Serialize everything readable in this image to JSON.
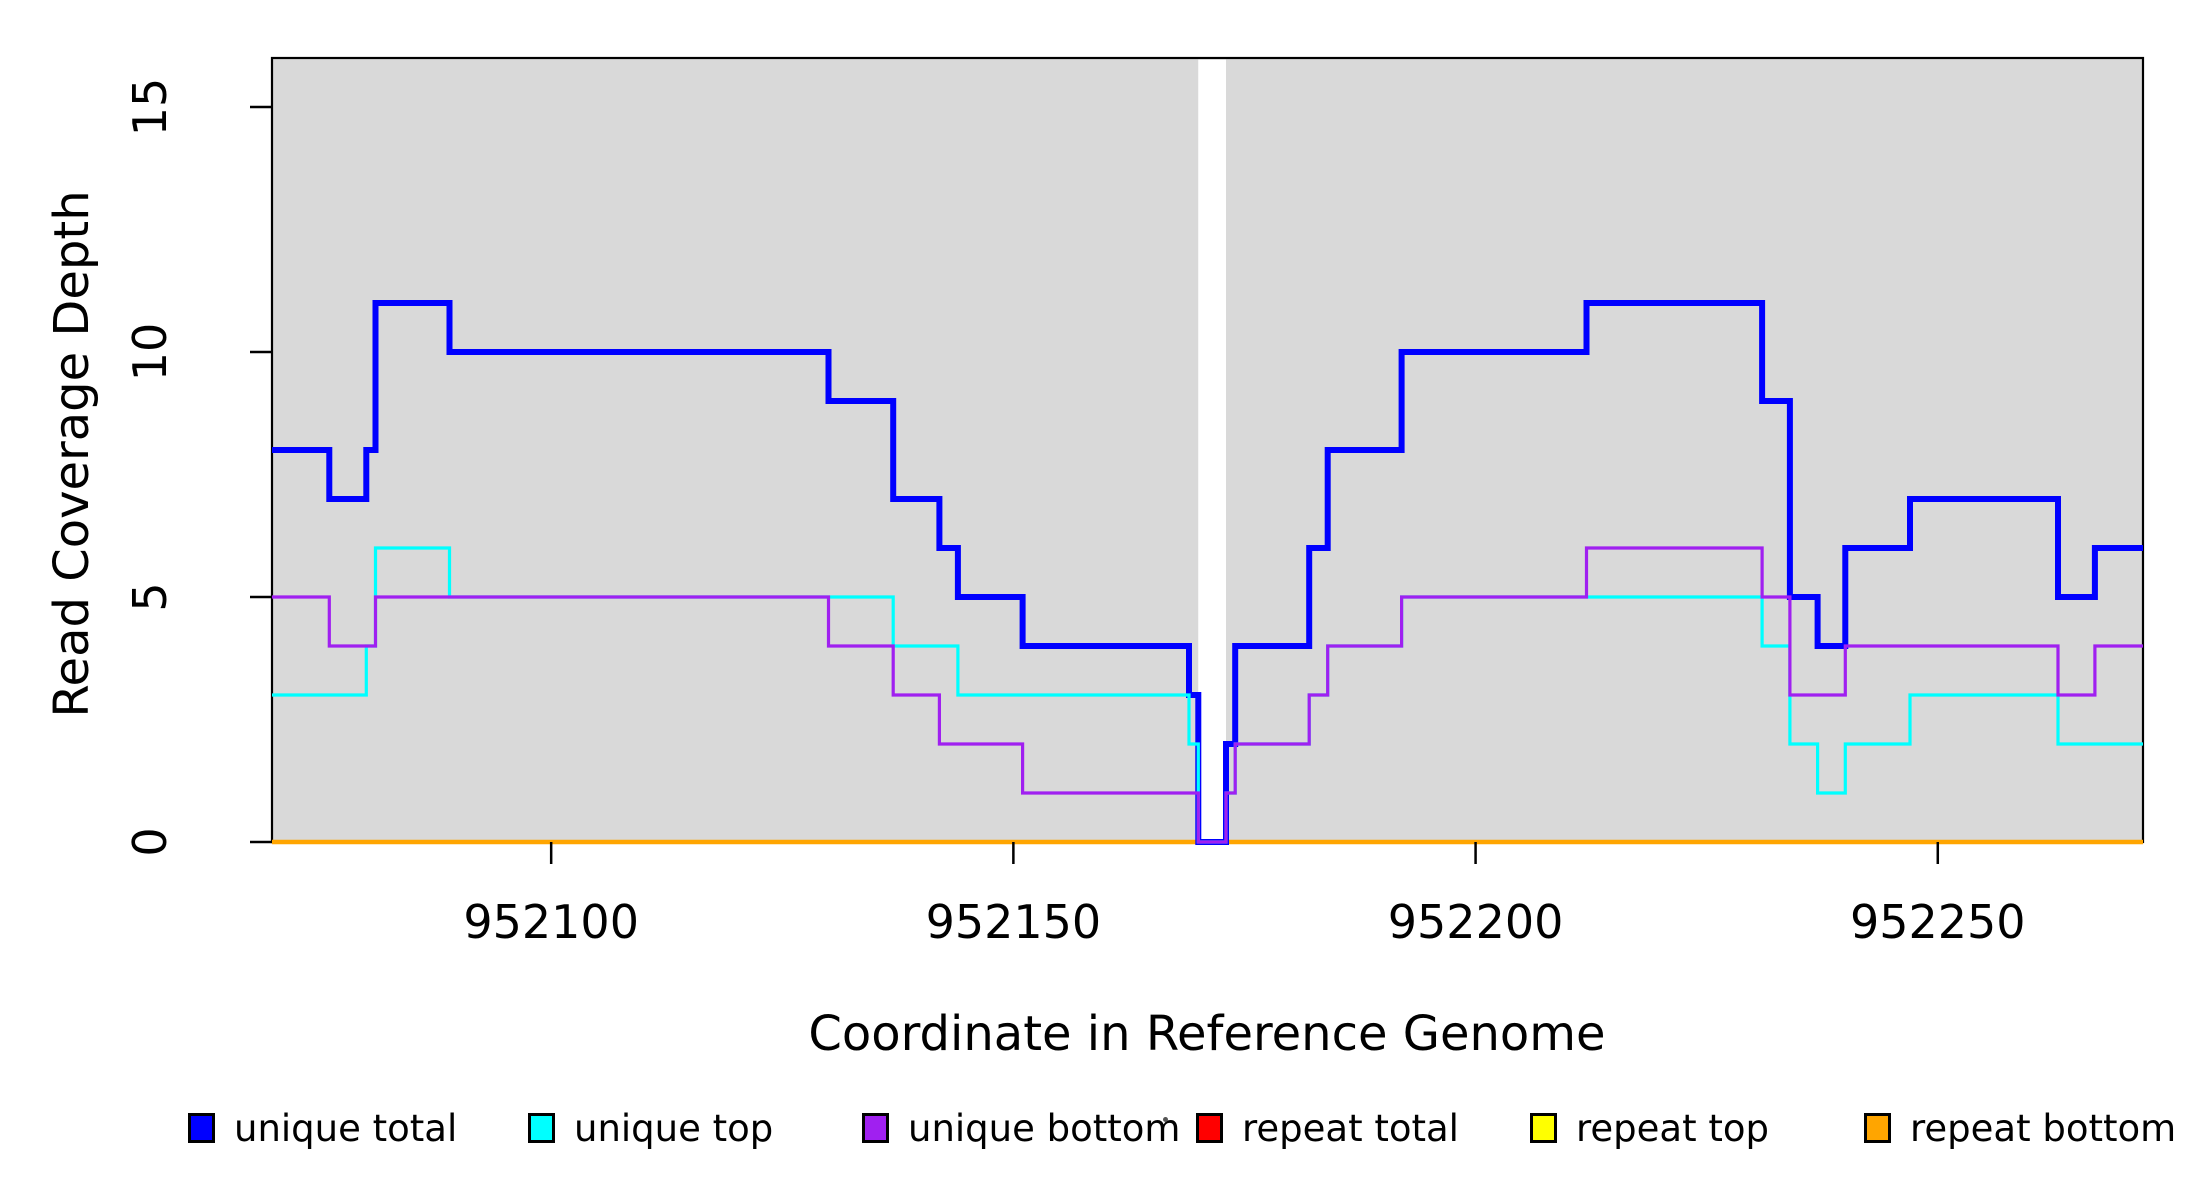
{
  "chart_data": {
    "type": "line",
    "subtype": "step",
    "title": "",
    "xlabel": "Coordinate in Reference Genome",
    "ylabel": "Read Coverage Depth",
    "xlim": [
      952069.8,
      952272.2
    ],
    "ylim": [
      0,
      16
    ],
    "x_ticks": [
      952100,
      952150,
      952200,
      952250
    ],
    "y_ticks": [
      0,
      5,
      10,
      15
    ],
    "grid": false,
    "legend_position": "bottom",
    "plot_background": "#D9D9D9",
    "no_data_region": {
      "x_start": 952170,
      "x_end": 952173
    },
    "series": [
      {
        "name": "unique total",
        "color": "#0000FF",
        "line_width": 6,
        "steps": [
          [
            952069.8,
            8
          ],
          [
            952076,
            7
          ],
          [
            952080,
            8
          ],
          [
            952081,
            11
          ],
          [
            952089,
            10
          ],
          [
            952130,
            9
          ],
          [
            952137,
            7
          ],
          [
            952142,
            6
          ],
          [
            952144,
            5
          ],
          [
            952151,
            4
          ],
          [
            952169,
            3
          ],
          [
            952170,
            0
          ],
          [
            952173,
            2
          ],
          [
            952174,
            4
          ],
          [
            952182,
            6
          ],
          [
            952184,
            8
          ],
          [
            952192,
            10
          ],
          [
            952212,
            11
          ],
          [
            952231,
            9
          ],
          [
            952234,
            5
          ],
          [
            952237,
            4
          ],
          [
            952240,
            6
          ],
          [
            952247,
            7
          ],
          [
            952263,
            5
          ],
          [
            952267,
            6
          ]
        ]
      },
      {
        "name": "unique top",
        "color": "#00FFFF",
        "line_width": 3.2,
        "steps": [
          [
            952069.8,
            3
          ],
          [
            952080,
            4
          ],
          [
            952081,
            6
          ],
          [
            952089,
            5
          ],
          [
            952137,
            4
          ],
          [
            952144,
            3
          ],
          [
            952169,
            2
          ],
          [
            952170,
            0
          ],
          [
            952173,
            1
          ],
          [
            952174,
            2
          ],
          [
            952182,
            3
          ],
          [
            952184,
            4
          ],
          [
            952192,
            5
          ],
          [
            952231,
            4
          ],
          [
            952234,
            2
          ],
          [
            952237,
            1
          ],
          [
            952240,
            2
          ],
          [
            952247,
            3
          ],
          [
            952263,
            2
          ]
        ]
      },
      {
        "name": "unique bottom",
        "color": "#A020F0",
        "line_width": 3.2,
        "steps": [
          [
            952069.8,
            5
          ],
          [
            952076,
            4
          ],
          [
            952081,
            5
          ],
          [
            952130,
            4
          ],
          [
            952137,
            3
          ],
          [
            952142,
            2
          ],
          [
            952151,
            1
          ],
          [
            952170,
            0
          ],
          [
            952173,
            1
          ],
          [
            952174,
            2
          ],
          [
            952182,
            3
          ],
          [
            952184,
            4
          ],
          [
            952192,
            5
          ],
          [
            952212,
            6
          ],
          [
            952231,
            5
          ],
          [
            952234,
            3
          ],
          [
            952240,
            4
          ],
          [
            952263,
            3
          ],
          [
            952267,
            4
          ]
        ]
      },
      {
        "name": "repeat total",
        "color": "#FF0000",
        "line_width": 4,
        "steps": [
          [
            952069.8,
            0
          ]
        ]
      },
      {
        "name": "repeat top",
        "color": "#FFFF00",
        "line_width": 4,
        "steps": [
          [
            952069.8,
            0
          ]
        ]
      },
      {
        "name": "repeat bottom",
        "color": "#FFA500",
        "line_width": 4.5,
        "steps": [
          [
            952069.8,
            0
          ]
        ]
      }
    ],
    "legend": {
      "items": [
        {
          "label": "unique total",
          "color": "#0000FF"
        },
        {
          "label": "unique top",
          "color": "#00FFFF"
        },
        {
          "label": "unique bottom",
          "color": "#A020F0"
        },
        {
          "label": "repeat total",
          "color": "#FF0000"
        },
        {
          "label": "repeat top",
          "color": "#FFFF00"
        },
        {
          "label": "repeat bottom",
          "color": "#FFA500"
        }
      ]
    }
  }
}
